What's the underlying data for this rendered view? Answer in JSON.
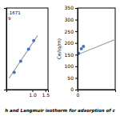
{
  "caption": "h and Langmuir isotherm for adsorption of c",
  "chart_data": [
    {
      "type": "scatter",
      "xlim": [
        0.0,
        1.6
      ],
      "ylim": [
        -1.25,
        -0.3
      ],
      "xticks": [
        {
          "value": 1.0,
          "label": "1.0"
        },
        1.5
      ],
      "yticks": [],
      "tick_labels": "x",
      "annotations": [
        ".1671",
        "9"
      ],
      "series": [
        {
          "type": "line",
          "color": "#a0a0a0",
          "x": [
            0.1,
            1.2
          ],
          "values": [
            -1.12,
            -0.62
          ]
        },
        {
          "type": "scatter",
          "color": "#4472c4",
          "x": [
            0.3,
            0.55,
            0.85,
            1.05
          ],
          "values": [
            -1.05,
            -0.92,
            -0.78,
            -0.68
          ]
        }
      ]
    },
    {
      "type": "scatter",
      "ylabel": "Ce/(q/m)",
      "xlim": [
        0.0,
        1.8
      ],
      "ylim": [
        0,
        350
      ],
      "xticks": [
        0
      ],
      "yticks": [
        0,
        50,
        100,
        150,
        200,
        250,
        300,
        350
      ],
      "series": [
        {
          "type": "line",
          "color": "#a0a0a0",
          "x": [
            0.0,
            1.8
          ],
          "values": [
            150,
            215
          ]
        },
        {
          "type": "scatter",
          "color": "#4472c4",
          "x": [
            0.05,
            0.18,
            0.28
          ],
          "values": [
            155,
            175,
            185
          ]
        }
      ]
    }
  ]
}
